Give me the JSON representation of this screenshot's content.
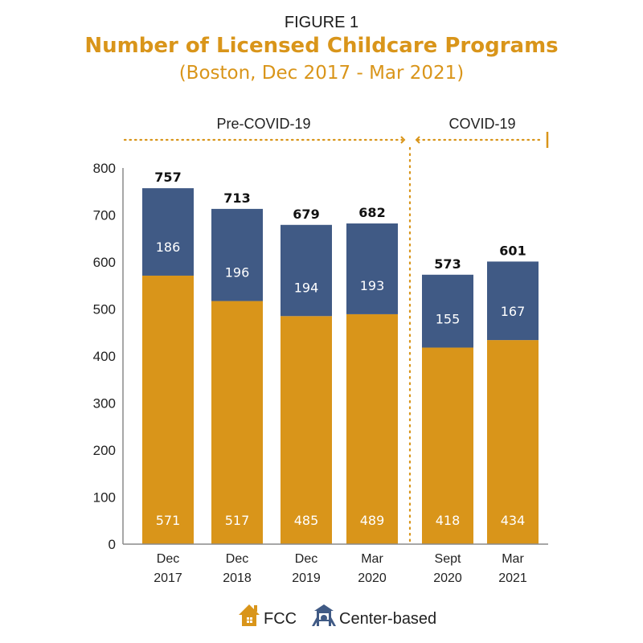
{
  "chart_data": {
    "type": "bar",
    "stacked": true,
    "figure_label": "FIGURE 1",
    "title": "Number of Licensed Childcare Programs",
    "subtitle": "(Boston, Dec 2017 - Mar 2021)",
    "categories": [
      [
        "Dec",
        "2017"
      ],
      [
        "Dec",
        "2018"
      ],
      [
        "Dec",
        "2019"
      ],
      [
        "Mar",
        "2020"
      ],
      [
        "Sept",
        "2020"
      ],
      [
        "Mar",
        "2021"
      ]
    ],
    "series": [
      {
        "name": "FCC",
        "color": "#d9951a",
        "icon": "house-icon",
        "values": [
          571,
          517,
          485,
          489,
          418,
          434
        ]
      },
      {
        "name": "Center-based",
        "color": "#405a85",
        "icon": "playground-icon",
        "values": [
          186,
          196,
          194,
          193,
          155,
          167
        ]
      }
    ],
    "totals": [
      757,
      713,
      679,
      682,
      573,
      601
    ],
    "periods": [
      {
        "label": "Pre-COVID-19",
        "from_index": 0,
        "to_index": 3
      },
      {
        "label": "COVID-19",
        "from_index": 4,
        "to_index": 5
      }
    ],
    "ylim": [
      0,
      800
    ],
    "yticks": [
      0,
      100,
      200,
      300,
      400,
      500,
      600,
      700,
      800
    ],
    "xlabel": "",
    "ylabel": "",
    "grid": false,
    "legend_position": "bottom-center",
    "accent_color": "#d9951a"
  }
}
